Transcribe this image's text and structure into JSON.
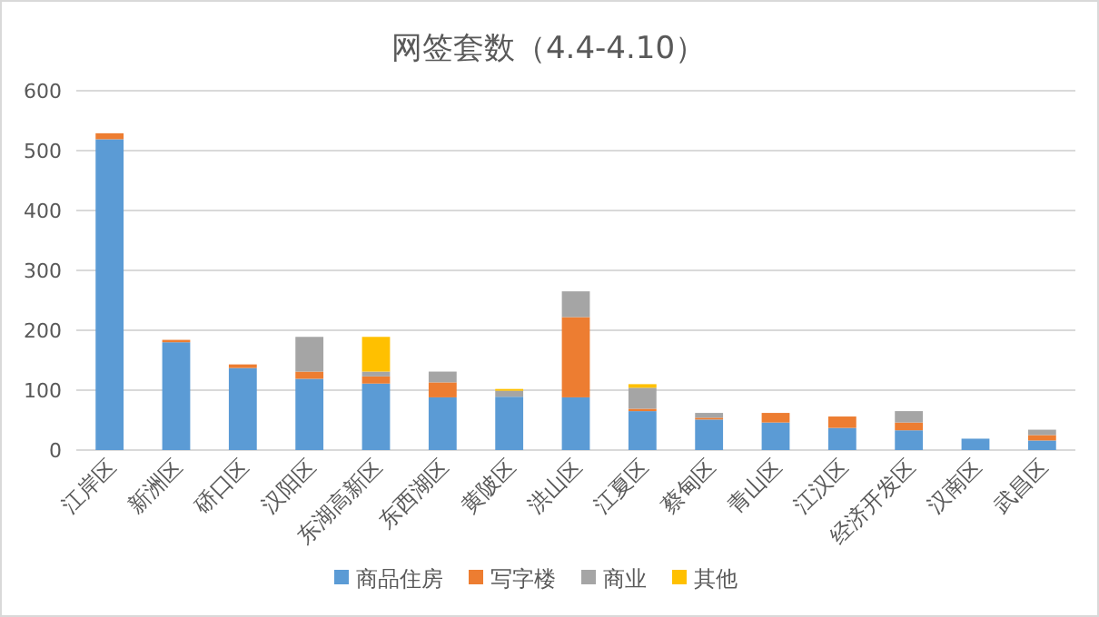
{
  "chart_data": {
    "type": "bar",
    "stacked": true,
    "title": "网签套数（4.4-4.10）",
    "categories": [
      "江岸区",
      "新洲区",
      "硚口区",
      "汉阳区",
      "东湖高新区",
      "东西湖区",
      "黄陂区",
      "洪山区",
      "江夏区",
      "蔡甸区",
      "青山区",
      "江汉区",
      "经济开发区",
      "汉南区",
      "武昌区"
    ],
    "series": [
      {
        "name": "商品住房",
        "color": "#5b9bd5",
        "values": [
          519,
          180,
          137,
          119,
          111,
          88,
          89,
          88,
          65,
          51,
          46,
          37,
          33,
          19,
          16
        ]
      },
      {
        "name": "写字楼",
        "color": "#ed7d31",
        "values": [
          10,
          4,
          6,
          12,
          12,
          25,
          0,
          134,
          4,
          3,
          16,
          19,
          13,
          0,
          9
        ]
      },
      {
        "name": "商业",
        "color": "#a5a5a5",
        "values": [
          null,
          null,
          0,
          58,
          8,
          18,
          10,
          43,
          35,
          8,
          0,
          0,
          19,
          0,
          9
        ]
      },
      {
        "name": "其他",
        "color": "#ffc000",
        "values": [
          0,
          0,
          0,
          0,
          58,
          0,
          3,
          0,
          6,
          0,
          0,
          0,
          0,
          0,
          0
        ]
      }
    ],
    "ylim": [
      0,
      600
    ],
    "yticks": [
      0,
      100,
      200,
      300,
      400,
      500,
      600
    ],
    "grid": "y",
    "legend": "bottom"
  }
}
